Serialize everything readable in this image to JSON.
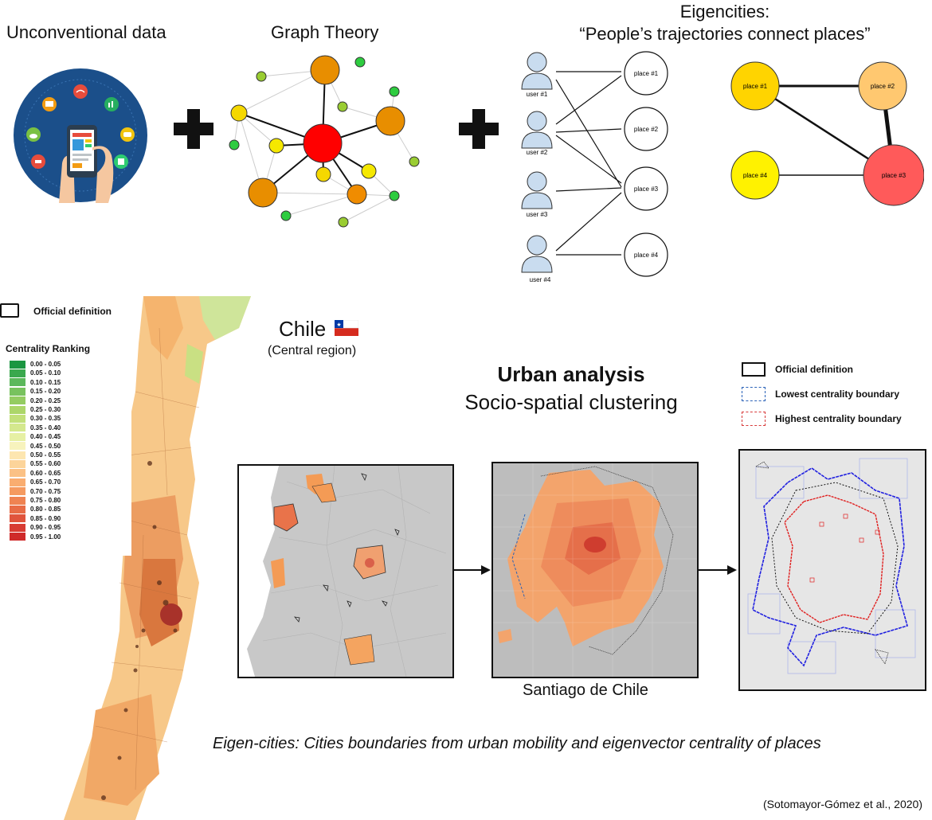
{
  "top": {
    "unconventional_title": "Unconventional data",
    "graph_title": "Graph Theory",
    "eigen_title_line1": "Eigencities:",
    "eigen_title_line2": "“People’s trajectories connect places”"
  },
  "bipartite": {
    "users": [
      "user #1",
      "user #2",
      "user #3",
      "user #4"
    ],
    "places": [
      "place #1",
      "place #2",
      "place #3",
      "place #4"
    ]
  },
  "projected": {
    "place1": "place #1",
    "place2": "place #2",
    "place3": "place #3",
    "place4": "place #4"
  },
  "legend": {
    "official_definition": "Official definition",
    "centrality_title": "Centrality Ranking",
    "ranges": [
      "0.00 - 0.05",
      "0.05 - 0.10",
      "0.10 - 0.15",
      "0.15 - 0.20",
      "0.20 - 0.25",
      "0.25 - 0.30",
      "0.30 - 0.35",
      "0.35 - 0.40",
      "0.40 - 0.45",
      "0.45 - 0.50",
      "0.50 - 0.55",
      "0.55 - 0.60",
      "0.60 - 0.65",
      "0.65 - 0.70",
      "0.70 - 0.75",
      "0.75 - 0.80",
      "0.80 - 0.85",
      "0.85 - 0.90",
      "0.90 - 0.95",
      "0.95 - 1.00"
    ],
    "colors": [
      "#1a9641",
      "#3aa84e",
      "#5cb85c",
      "#78c25e",
      "#94cc62",
      "#acd66a",
      "#c2e07a",
      "#d4e88e",
      "#e6f0a4",
      "#f7f3bd",
      "#fde6b0",
      "#fcd49a",
      "#fbc185",
      "#f9ad70",
      "#f59a60",
      "#ef8352",
      "#e86c46",
      "#e0543c",
      "#d83c33",
      "#cf2a2a"
    ]
  },
  "chile": {
    "label": "Chile",
    "sublabel": "(Central region)"
  },
  "urban": {
    "title": "Urban analysis",
    "subtitle": "Socio-spatial clustering",
    "santiago_label": "Santiago de Chile"
  },
  "boundary_legend": {
    "official": "Official definition",
    "lowest": "Lowest centrality boundary",
    "highest": "Highest centrality boundary"
  },
  "caption": "Eigen-cities: Cities boundaries from urban mobility and  eigenvector centrality of places",
  "citation": "(Sotomayor-Gómez et al., 2020)"
}
